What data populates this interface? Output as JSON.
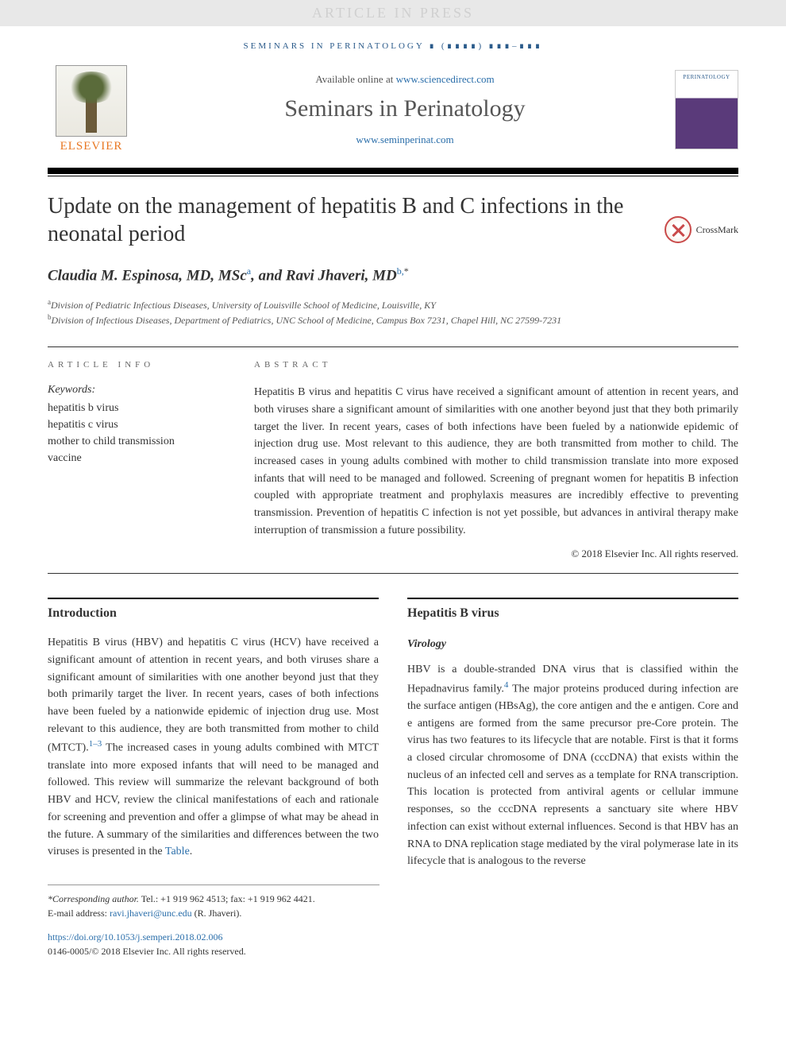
{
  "banner": {
    "text": "ARTICLE IN PRESS"
  },
  "journal_meta": "SEMINARS IN PERINATOLOGY ∎ (∎∎∎∎) ∎∎∎–∎∎∎",
  "header": {
    "elsevier": "ELSEVIER",
    "available_prefix": "Available online at ",
    "available_url": "www.sciencedirect.com",
    "journal_title": "Seminars in Perinatology",
    "journal_url": "www.seminperinat.com"
  },
  "crossmark": "CrossMark",
  "title": "Update on the management of hepatitis B and C infections in the neonatal period",
  "authors": {
    "a1_name": "Claudia M. Espinosa, MD, MSc",
    "a1_sup": "a",
    "sep": ", and ",
    "a2_name": "Ravi Jhaveri, MD",
    "a2_sup": "b,",
    "a2_symbol": "*"
  },
  "affiliations": {
    "a": "Division of Pediatric Infectious Diseases, University of Louisville School of Medicine, Louisville, KY",
    "b": "Division of Infectious Diseases, Department of Pediatrics, UNC School of Medicine, Campus Box 7231, Chapel Hill, NC 27599-7231"
  },
  "article_info_label": "article info",
  "abstract_label": "abstract",
  "keywords_label": "Keywords:",
  "keywords": [
    "hepatitis b virus",
    "hepatitis c virus",
    "mother to child transmission",
    "vaccine"
  ],
  "abstract_text": "Hepatitis B virus and hepatitis C virus have received a significant amount of attention in recent years, and both viruses share a significant amount of similarities with one another beyond just that they both primarily target the liver. In recent years, cases of both infections have been fueled by a nationwide epidemic of injection drug use. Most relevant to this audience, they are both transmitted from mother to child. The increased cases in young adults combined with mother to child transmission translate into more exposed infants that will need to be managed and followed. Screening of pregnant women for hepatitis B infection coupled with appropriate treatment and prophylaxis measures are incredibly effective to preventing transmission. Prevention of hepatitis C infection is not yet possible, but advances in antiviral therapy make interruption of transmission a future possibility.",
  "abstract_copyright": "© 2018 Elsevier Inc. All rights reserved.",
  "sections": {
    "intro_heading": "Introduction",
    "intro_p1a": "Hepatitis B virus (HBV) and hepatitis C virus (HCV) have received a significant amount of attention in recent years, and both viruses share a significant amount of similarities with one another beyond just that they both primarily target the liver. In recent years, cases of both infections have been fueled by a nationwide epidemic of injection drug use. Most relevant to this audience, they are both transmitted from mother to child (MTCT).",
    "intro_ref1": "1–3",
    "intro_p1b": " The increased cases in young adults combined with MTCT translate into more exposed infants that will need to be managed and followed. This review will summarize the relevant background of both HBV and HCV, review the clinical manifestations of each and rationale for screening and prevention and offer a glimpse of what may be ahead in the future. A summary of the similarities and differences between the two viruses is presented in the ",
    "intro_table_link": "Table",
    "intro_p1c": ".",
    "hbv_heading": "Hepatitis B virus",
    "virology_heading": "Virology",
    "hbv_p1a": "HBV is a double-stranded DNA virus that is classified within the Hepadnavirus family.",
    "hbv_ref4": "4",
    "hbv_p1b": " The major proteins produced during infection are the surface antigen (HBsAg), the core antigen and the e antigen. Core and e antigens are formed from the same precursor pre-Core protein. The virus has two features to its lifecycle that are notable. First is that it forms a closed circular chromosome of DNA (cccDNA) that exists within the nucleus of an infected cell and serves as a template for RNA transcription. This location is protected from antiviral agents or cellular immune responses, so the cccDNA represents a sanctuary site where HBV infection can exist without external influences. Second is that HBV has an RNA to DNA replication stage mediated by the viral polymerase late in its lifecycle that is analogous to the reverse"
  },
  "footer": {
    "corr_label": "*Corresponding author.",
    "corr_line": " Tel.: +1 919 962 4513; fax: +1 919 962 4421.",
    "email_label": "E-mail address: ",
    "email": "ravi.jhaveri@unc.edu",
    "email_suffix": " (R. Jhaveri).",
    "doi": "https://doi.org/10.1053/j.semperi.2018.02.006",
    "issn_line": "0146-0005/© 2018 Elsevier Inc. All rights reserved."
  },
  "colors": {
    "link": "#2a6eaa",
    "elsevier_orange": "#e87722",
    "banner_bg": "#e8e8e8"
  }
}
